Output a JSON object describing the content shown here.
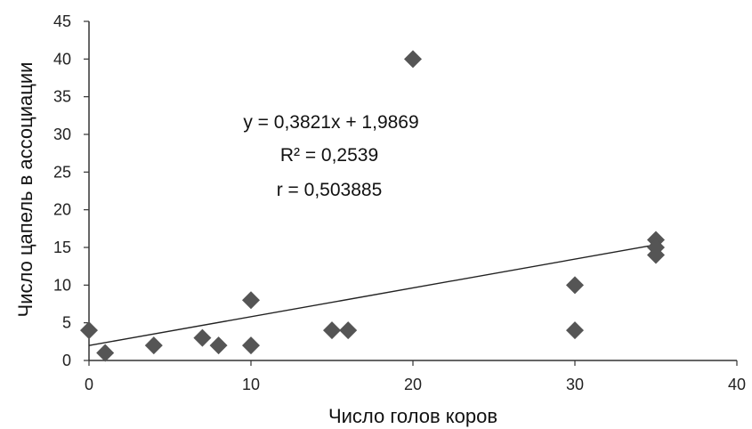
{
  "chart_data": {
    "type": "scatter",
    "title": "",
    "xlabel": "Число голов коров",
    "ylabel": "Число цапель в ассоциации",
    "xlim": [
      0,
      40
    ],
    "ylim": [
      0,
      45
    ],
    "x_ticks": [
      "0",
      "10",
      "20",
      "30",
      "40"
    ],
    "y_ticks": [
      "0",
      "5",
      "10",
      "15",
      "20",
      "25",
      "30",
      "35",
      "40",
      "45"
    ],
    "grid": false,
    "marker": "diamond",
    "marker_color": "#555555",
    "trendline": {
      "type": "linear",
      "slope": 0.3821,
      "intercept": 1.9869,
      "x_range": [
        0,
        35
      ],
      "color": "#222222"
    },
    "points": [
      {
        "x": 0,
        "y": 4
      },
      {
        "x": 1,
        "y": 1
      },
      {
        "x": 4,
        "y": 2
      },
      {
        "x": 7,
        "y": 3
      },
      {
        "x": 8,
        "y": 2
      },
      {
        "x": 10,
        "y": 8
      },
      {
        "x": 10,
        "y": 2
      },
      {
        "x": 15,
        "y": 4
      },
      {
        "x": 16,
        "y": 4
      },
      {
        "x": 20,
        "y": 40
      },
      {
        "x": 30,
        "y": 10
      },
      {
        "x": 30,
        "y": 4
      },
      {
        "x": 35,
        "y": 16
      },
      {
        "x": 35,
        "y": 15
      },
      {
        "x": 35,
        "y": 14
      }
    ],
    "annotations": [
      "y = 0,3821x + 1,9869",
      "R² = 0,2539",
      "r = 0,503885"
    ]
  }
}
